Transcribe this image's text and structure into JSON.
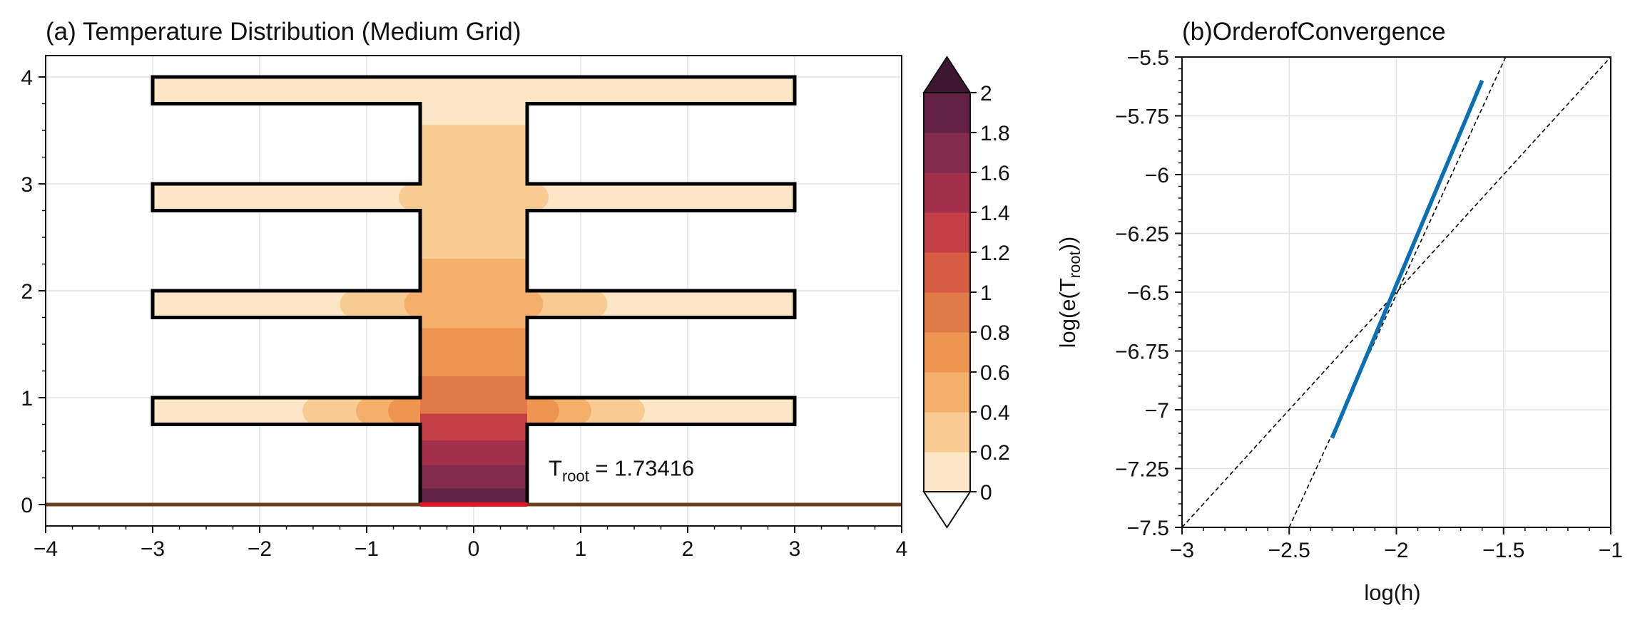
{
  "chart_data": [
    {
      "type": "heatmap",
      "title": "(a) Temperature Distribution (Medium Grid)",
      "xlabel": "",
      "ylabel": "",
      "xlim": [
        -4,
        4
      ],
      "ylim": [
        -0.2,
        4.2
      ],
      "xticks": [
        "−4",
        "−3",
        "−2",
        "−1",
        "0",
        "1",
        "2",
        "3",
        "4"
      ],
      "yticks": [
        "0",
        "1",
        "2",
        "3",
        "4"
      ],
      "grid": true,
      "annotation": {
        "text_main": "T",
        "text_sub": "root",
        "text_value": " = 1.73416",
        "x": 0.7,
        "y": 0.27
      },
      "geometry_note_units": "data",
      "trunk": {
        "x": [
          -0.5,
          0.5
        ],
        "y": [
          0,
          4.0
        ]
      },
      "fins": [
        {
          "y": [
            0.75,
            1.0
          ],
          "x": [
            -3,
            3
          ]
        },
        {
          "y": [
            1.75,
            2.0
          ],
          "x": [
            -3,
            3
          ]
        },
        {
          "y": [
            2.75,
            3.0
          ],
          "x": [
            -3,
            3
          ]
        },
        {
          "y": [
            3.75,
            4.0
          ],
          "x": [
            -3,
            3
          ]
        }
      ],
      "base_line": {
        "y": 0,
        "color": "#6b3e1a"
      },
      "root_segment": {
        "x": [
          -0.5,
          0.5
        ],
        "y": 0,
        "color": "#e8141c"
      },
      "temperature_profile_trunk": [
        {
          "y0": 0.0,
          "y1": 0.15,
          "value": 1.9
        },
        {
          "y0": 0.15,
          "y1": 0.37,
          "value": 1.7
        },
        {
          "y0": 0.37,
          "y1": 0.6,
          "value": 1.5
        },
        {
          "y0": 0.6,
          "y1": 0.85,
          "value": 1.3
        },
        {
          "y0": 0.85,
          "y1": 1.2,
          "value": 0.9
        },
        {
          "y0": 1.2,
          "y1": 1.65,
          "value": 0.7
        },
        {
          "y0": 1.65,
          "y1": 2.3,
          "value": 0.5
        },
        {
          "y0": 2.3,
          "y1": 3.55,
          "value": 0.3
        },
        {
          "y0": 3.55,
          "y1": 4.0,
          "value": 0.1
        }
      ],
      "fin_contours": [
        {
          "fin": 0,
          "levels": [
            {
              "half_width": 1.6,
              "value": 0.3
            },
            {
              "half_width": 1.1,
              "value": 0.5
            },
            {
              "half_width": 0.8,
              "value": 0.7
            }
          ]
        },
        {
          "fin": 1,
          "levels": [
            {
              "half_width": 1.25,
              "value": 0.3
            },
            {
              "half_width": 0.65,
              "value": 0.5
            }
          ]
        },
        {
          "fin": 2,
          "levels": [
            {
              "half_width": 0.7,
              "value": 0.3
            }
          ]
        },
        {
          "fin": 3,
          "levels": []
        }
      ],
      "colorbar": {
        "levels": [
          0,
          0.2,
          0.4,
          0.6,
          0.8,
          1,
          1.2,
          1.4,
          1.6,
          1.8,
          2
        ],
        "labels": [
          "0",
          "0.2",
          "0.4",
          "0.6",
          "0.8",
          "1",
          "1.2",
          "1.4",
          "1.6",
          "1.8",
          "2"
        ],
        "colors": [
          "#fde6c6",
          "#f8cb92",
          "#f4b06a",
          "#ee9551",
          "#e27a47",
          "#d65c43",
          "#c33e45",
          "#a5304c",
          "#842a4c",
          "#622044"
        ],
        "extend_low": "#ffffff",
        "extend_high": "#3e1630"
      }
    },
    {
      "type": "line",
      "title": "(b)OrderofConvergence",
      "xlabel": "log(h)",
      "ylabel_main": "log(e(T",
      "ylabel_sub": "root",
      "ylabel_end": "))",
      "xlim": [
        -3,
        -1
      ],
      "ylim": [
        -7.5,
        -5.5
      ],
      "xticks": [
        "−3",
        "−2.5",
        "−2",
        "−1.5",
        "−1"
      ],
      "yticks": [
        "−5.5",
        "−5.75",
        "−6",
        "−6.25",
        "−6.5",
        "−6.75",
        "−7",
        "−7.25",
        "−7.5"
      ],
      "grid": true,
      "series": [
        {
          "x": [
            -2.3,
            -1.6
          ],
          "y": [
            -7.12,
            -5.6
          ],
          "color": "#0a6fb3",
          "style": "solid"
        }
      ],
      "reference_lines": [
        {
          "x": [
            -3,
            -1
          ],
          "y": [
            -7.5,
            -5.5
          ],
          "style": "dashed"
        },
        {
          "x": [
            -2.5,
            -1.48
          ],
          "y": [
            -7.5,
            -5.48
          ],
          "style": "dashed"
        }
      ]
    }
  ]
}
